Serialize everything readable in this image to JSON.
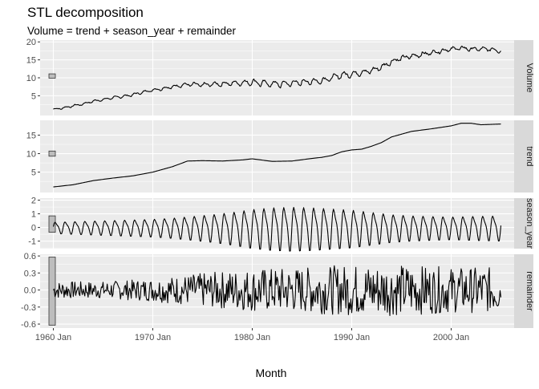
{
  "chart_data": {
    "type": "line",
    "title": "STL decomposition",
    "subtitle": "Volume = trend + season_year + remainder",
    "xlabel": "Month",
    "x_range": [
      1960.0,
      2005.0
    ],
    "x_ticks": [
      {
        "value": 1960,
        "label": "1960 Jan"
      },
      {
        "value": 1970,
        "label": "1970 Jan"
      },
      {
        "value": 1980,
        "label": "1980 Jan"
      },
      {
        "value": 1990,
        "label": "1990 Jan"
      },
      {
        "value": 2000,
        "label": "2000 Jan"
      }
    ],
    "panels": [
      {
        "key": "volume",
        "strip": "Volume",
        "ylim": [
          -0.5,
          20.5
        ],
        "y_ticks": [
          5,
          10,
          15,
          20
        ],
        "y_tick_labels": [
          "5",
          "10",
          "15",
          "20"
        ],
        "scale_bar": [
          9.9,
          11.1
        ],
        "series": {
          "x": [
            1960,
            1961,
            1962,
            1963,
            1964,
            1965,
            1966,
            1967,
            1968,
            1969,
            1970,
            1971,
            1972,
            1973,
            1974,
            1975,
            1976,
            1977,
            1978,
            1979,
            1980,
            1981,
            1982,
            1983,
            1984,
            1985,
            1986,
            1987,
            1988,
            1989,
            1990,
            1991,
            1992,
            1993,
            1994,
            1995,
            1996,
            1997,
            1998,
            1999,
            2000,
            2001,
            2002,
            2003,
            2004,
            2005
          ],
          "y": [
            1.2,
            1.6,
            2.2,
            2.7,
            3.5,
            3.9,
            4.5,
            4.8,
            5.3,
            6.0,
            6.6,
            7.0,
            7.5,
            8.0,
            8.2,
            8.0,
            8.2,
            8.3,
            8.5,
            8.6,
            8.8,
            8.5,
            8.3,
            8.3,
            8.5,
            8.8,
            9.0,
            9.2,
            10.0,
            10.8,
            11.0,
            11.5,
            12.0,
            13.0,
            14.5,
            15.5,
            16.0,
            16.5,
            17.0,
            17.5,
            18.0,
            18.3,
            18.0,
            18.0,
            18.0,
            17.5
          ]
        }
      },
      {
        "key": "trend",
        "strip": "trend",
        "ylim": [
          -0.5,
          19.0
        ],
        "y_ticks": [
          5,
          10,
          15
        ],
        "y_tick_labels": [
          "5",
          "10",
          "15"
        ],
        "scale_bar": [
          9.3,
          10.7
        ],
        "series": {
          "x": [
            1960,
            1962,
            1964,
            1966,
            1968,
            1970,
            1972,
            1973.5,
            1975,
            1977,
            1979,
            1980,
            1982,
            1984,
            1986,
            1987,
            1988,
            1989,
            1990,
            1991,
            1992,
            1993,
            1994,
            1996,
            1998,
            2000,
            2001,
            2002,
            2003,
            2004,
            2005
          ],
          "y": [
            1.0,
            1.6,
            2.7,
            3.4,
            4.0,
            5.0,
            6.5,
            8.0,
            8.1,
            8.0,
            8.3,
            8.6,
            7.9,
            8.0,
            8.7,
            9.0,
            9.5,
            10.5,
            11.0,
            11.2,
            12.0,
            13.0,
            14.5,
            16.0,
            16.7,
            17.5,
            18.2,
            18.2,
            17.8,
            17.9,
            18.0
          ]
        }
      },
      {
        "key": "season_year",
        "strip": "season_year",
        "ylim": [
          -1.55,
          2.15
        ],
        "y_ticks": [
          -1,
          0,
          1,
          2
        ],
        "y_tick_labels": [
          "-1",
          "0",
          "1",
          "2"
        ],
        "scale_bar": [
          -0.35,
          0.85
        ],
        "amplitude_series": {
          "x": [
            1960,
            1962,
            1964,
            1966,
            1968,
            1970,
            1972,
            1974,
            1976,
            1978,
            1980,
            1982,
            1984,
            1986,
            1988,
            1990,
            1992,
            1994,
            1996,
            1998,
            2000,
            2002,
            2005
          ],
          "amplitude": [
            0.45,
            0.5,
            0.55,
            0.6,
            0.65,
            0.7,
            0.8,
            0.95,
            1.1,
            1.3,
            1.55,
            1.7,
            1.75,
            1.7,
            1.6,
            1.5,
            1.3,
            1.1,
            1.0,
            0.95,
            0.9,
            0.95,
            1.0
          ]
        }
      },
      {
        "key": "remainder",
        "strip": "remainder",
        "ylim": [
          -0.67,
          0.63
        ],
        "y_ticks": [
          -0.6,
          -0.3,
          0.0,
          0.3,
          0.6
        ],
        "y_tick_labels": [
          "-0.6",
          "-0.3",
          "0.0",
          "0.3",
          "0.6"
        ],
        "scale_bar": [
          -0.62,
          0.58
        ],
        "envelope_series": {
          "x": [
            1960,
            1965,
            1970,
            1975,
            1980,
            1985,
            1990,
            1995,
            2000,
            2005
          ],
          "envelope": [
            0.15,
            0.15,
            0.2,
            0.3,
            0.38,
            0.4,
            0.45,
            0.45,
            0.4,
            0.4
          ]
        }
      }
    ],
    "colors": {
      "panel_bg": "#ebebeb",
      "grid_major": "#ffffff",
      "strip_bg": "#d9d9d9",
      "line": "#000000",
      "scale_bar_fill": "#bdbdbd",
      "axis_text": "#4d4d4d",
      "title_text": "#000000"
    },
    "grid": true
  }
}
